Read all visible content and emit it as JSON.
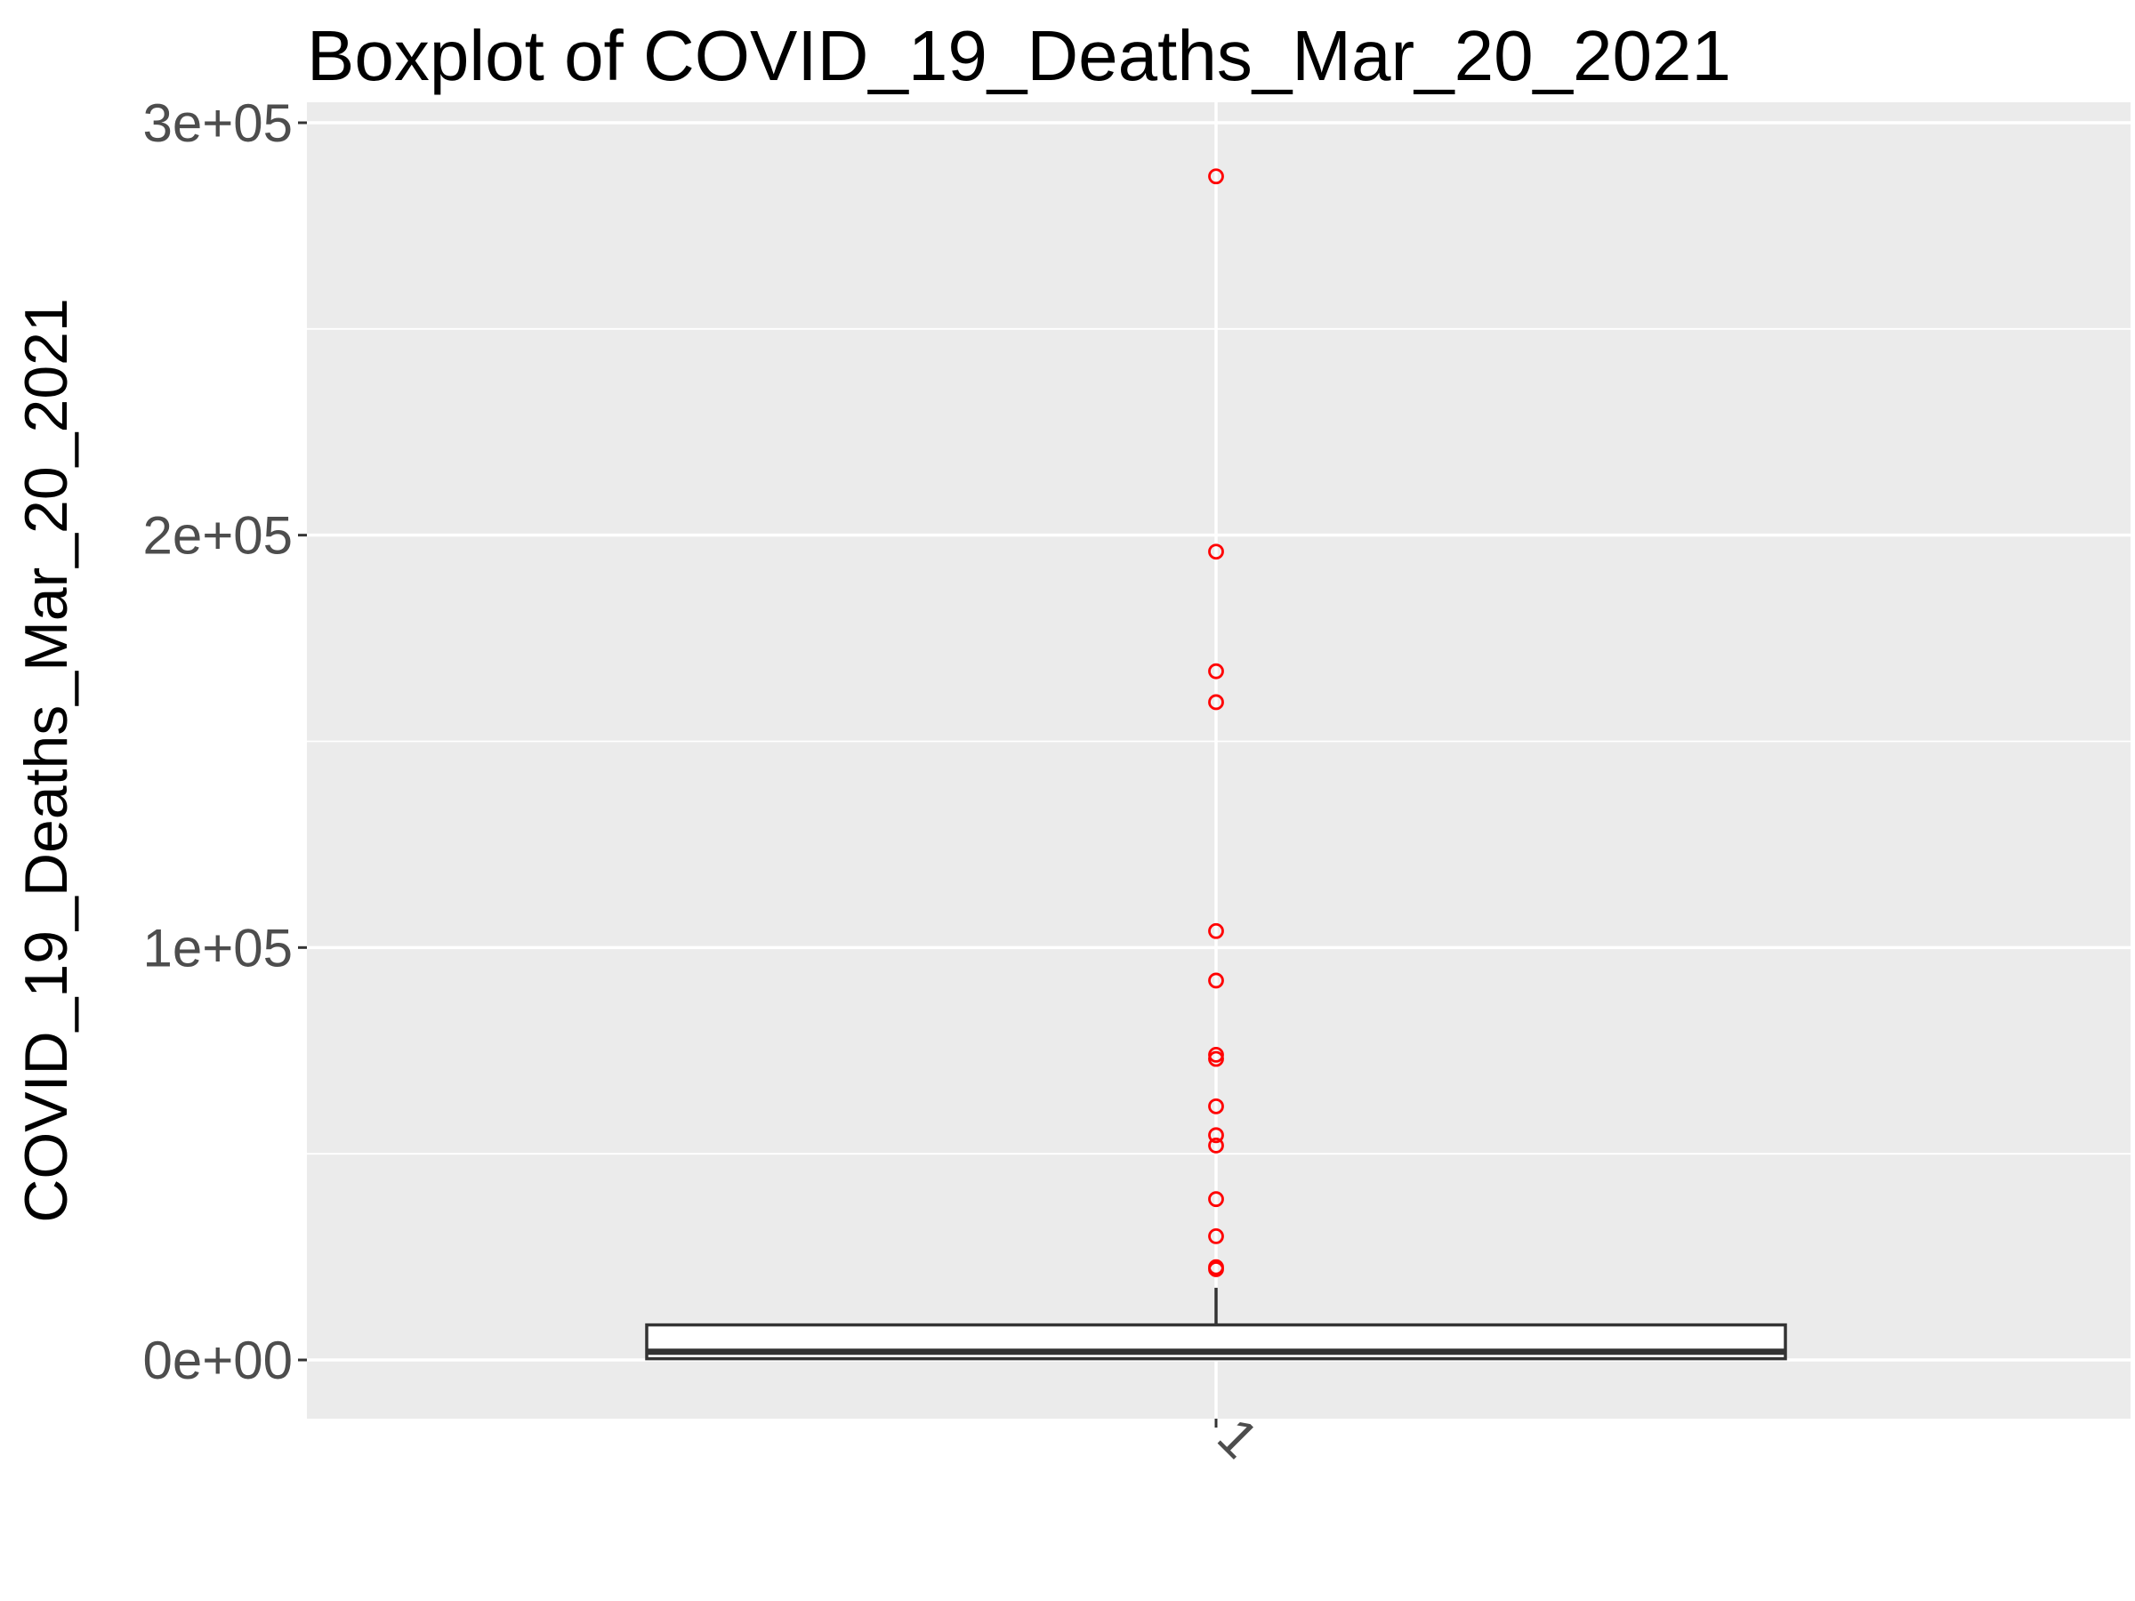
{
  "chart_data": {
    "type": "boxplot",
    "title": "Boxplot of COVID_19_Deaths_Mar_20_2021",
    "xlabel": "",
    "ylabel": "COVID_19_Deaths_Mar_20_2021",
    "categories": [
      "1"
    ],
    "ylim": [
      -14500,
      300000
    ],
    "y_ticks": [
      0,
      100000,
      200000,
      300000
    ],
    "y_tick_labels": [
      "0e+00",
      "1e+05",
      "2e+05",
      "3e+05"
    ],
    "x_tick_rotation_deg": 45,
    "box": {
      "category": "1",
      "q1": 300,
      "median": 2000,
      "q3": 8500,
      "whisker_low": 0,
      "whisker_high": 17500
    },
    "outliers": [
      287000,
      196000,
      167000,
      159500,
      104000,
      92000,
      74000,
      73000,
      61500,
      54500,
      52000,
      39000,
      30000,
      22500,
      22000
    ],
    "grid": true,
    "colors": {
      "panel": "#ebebeb",
      "grid": "#ffffff",
      "outlier": "#ff0000",
      "box_fill": "#ffffff",
      "box_line": "#333333",
      "tick_text": "#4d4d4d"
    }
  }
}
